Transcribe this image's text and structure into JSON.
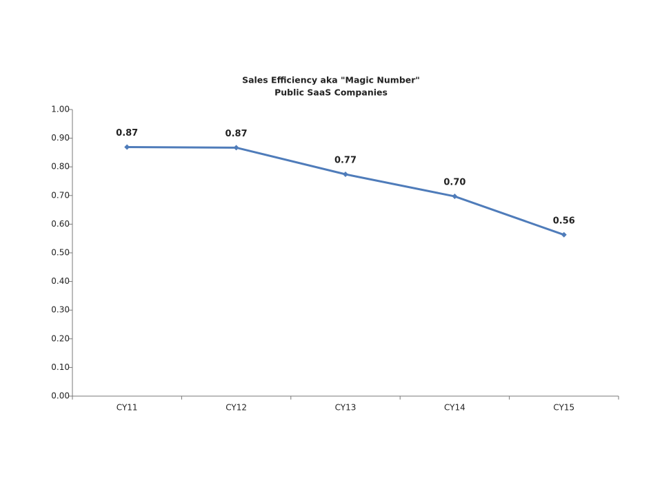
{
  "chart_data": {
    "type": "line",
    "title": "Sales Efficiency aka \"Magic Number\"",
    "subtitle": "Public SaaS Companies",
    "categories": [
      "CY11",
      "CY12",
      "CY13",
      "CY14",
      "CY15"
    ],
    "series": [
      {
        "color": "#4f7cba",
        "values": [
          0.869,
          0.867,
          0.774,
          0.697,
          0.563
        ],
        "value_labels": [
          "0.87",
          "0.87",
          "0.77",
          "0.70",
          "0.56"
        ]
      }
    ],
    "ylim": [
      0,
      1
    ],
    "yticks": [
      {
        "value": 0,
        "label": "0.00"
      },
      {
        "value": 0.1,
        "label": "0.10"
      },
      {
        "value": 0.2,
        "label": "0.20"
      },
      {
        "value": 0.3,
        "label": "0.30"
      },
      {
        "value": 0.4,
        "label": "0.40"
      },
      {
        "value": 0.5,
        "label": "0.50"
      },
      {
        "value": 0.6,
        "label": "0.60"
      },
      {
        "value": 0.7,
        "label": "0.70"
      },
      {
        "value": 0.8,
        "label": "0.80"
      },
      {
        "value": 0.9,
        "label": "0.90"
      },
      {
        "value": 1,
        "label": "1.00"
      }
    ],
    "grid": false
  }
}
